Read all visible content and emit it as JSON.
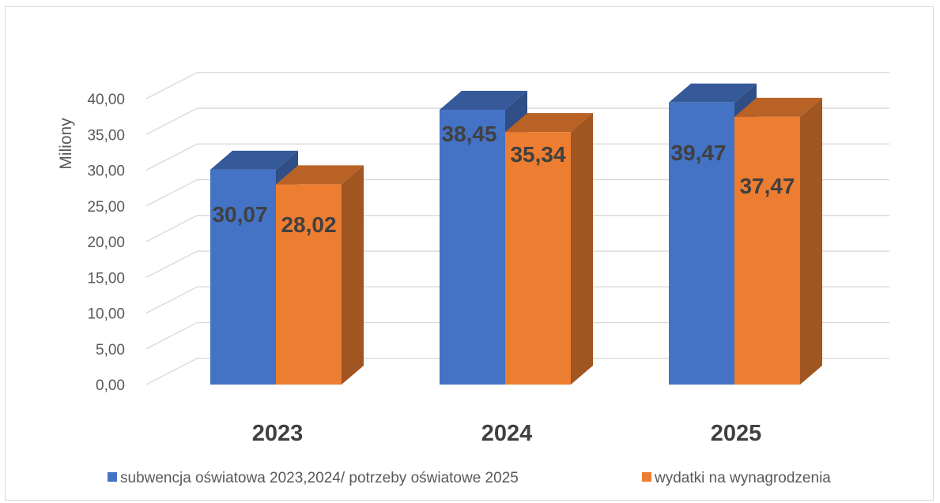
{
  "chart_data": {
    "type": "bar",
    "title": "",
    "xlabel": "",
    "ylabel": "Miliony",
    "ylim": [
      0,
      40
    ],
    "y_tick_step": 5,
    "y_tick_labels": [
      "0,00",
      "5,00",
      "10,00",
      "15,00",
      "20,00",
      "25,00",
      "30,00",
      "35,00",
      "40,00"
    ],
    "categories": [
      "2023",
      "2024",
      "2025"
    ],
    "grid": true,
    "three_d": true,
    "legend_position": "bottom",
    "series": [
      {
        "name": "subwencja oświatowa 2023,2024/ potrzeby oświatowe 2025",
        "values": [
          30.07,
          38.45,
          39.47
        ],
        "labels": [
          "30,07",
          "38,45",
          "39,47"
        ],
        "color": "#4472c4"
      },
      {
        "name": "wydatki na wynagrodzenia",
        "values": [
          28.02,
          35.34,
          37.47
        ],
        "labels": [
          "28,02",
          "35,34",
          "37,47"
        ],
        "color": "#ed7d31"
      }
    ]
  }
}
